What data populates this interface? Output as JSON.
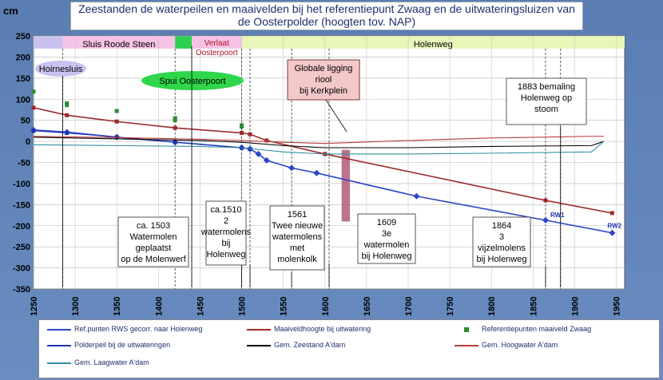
{
  "title": "Zeestanden de waterpeilen en maaivelden bij het referentiepunt Zwaag en de  uitwateringsluizen van de Oosterpolder (hoogten tov. NAP)",
  "chart_data": {
    "type": "line",
    "ylabel": "cm",
    "xlim": [
      1250,
      1960
    ],
    "ylim": [
      -350,
      250
    ],
    "y_ticks": [
      250,
      200,
      150,
      100,
      50,
      0,
      -50,
      -100,
      -150,
      -200,
      -250,
      -300,
      -350
    ],
    "x_ticks": [
      1250,
      1300,
      1350,
      1400,
      1450,
      1500,
      1550,
      1600,
      1650,
      1700,
      1750,
      1800,
      1850,
      1900,
      1950
    ],
    "grid": true,
    "legend_position": "bottom",
    "series": [
      {
        "name": "Ref.punten RWS gecorr. naar Holenweg",
        "color": "#2c46c8",
        "x": [
          1250,
          1290,
          1350,
          1420,
          1500,
          1510,
          1520,
          1530,
          1560,
          1590,
          1710,
          1865,
          1945
        ],
        "y": [
          27,
          22,
          10,
          -2,
          -15,
          -18,
          -30,
          -45,
          -63,
          -75,
          -130,
          -187,
          -217
        ]
      },
      {
        "name": "Maaiveldhoogte bij uitwatering",
        "color": "#9b2b2b",
        "x": [
          1250,
          1290,
          1350,
          1420,
          1500,
          1510,
          1530,
          1600,
          1865,
          1945
        ],
        "y": [
          80,
          62,
          47,
          32,
          20,
          17,
          2,
          -30,
          -140,
          -170
        ]
      },
      {
        "name": "Referentiepunten maaiveld Zwaag",
        "color": "#2e8b2e",
        "x": [
          1250,
          1290,
          1290,
          1350,
          1420,
          1420,
          1500,
          1500
        ],
        "y": [
          118,
          90,
          86,
          72,
          55,
          50,
          38,
          35
        ]
      },
      {
        "name": "Polderpeil bij de uitwateringen",
        "color": "#1f34b0",
        "x": [
          1250,
          1290,
          1350,
          1420,
          1500,
          1510
        ],
        "y": [
          25,
          20,
          10,
          -2,
          -15,
          -18
        ]
      },
      {
        "name": "Gem. Zeestand A'dam",
        "color": "#000000",
        "x": [
          1250,
          1350,
          1450,
          1500,
          1550,
          1600,
          1700,
          1800,
          1920,
          1935
        ],
        "y": [
          10,
          6,
          2,
          -2,
          -10,
          -15,
          -15,
          -12,
          -10,
          0
        ]
      },
      {
        "name": "Gem. Hoogwater A'dam",
        "color": "#b83b3b",
        "x": [
          1250,
          1350,
          1450,
          1500,
          1550,
          1600,
          1700,
          1800,
          1920,
          1935
        ],
        "y": [
          12,
          9,
          5,
          2,
          -2,
          -5,
          2,
          8,
          12,
          12
        ]
      },
      {
        "name": "Gem. Laagwater A'dam",
        "color": "#2f8fa6",
        "x": [
          1250,
          1350,
          1450,
          1500,
          1550,
          1600,
          1700,
          1800,
          1920,
          1935
        ],
        "y": [
          -8,
          -10,
          -12,
          -15,
          -25,
          -30,
          -30,
          -28,
          -25,
          0
        ]
      }
    ],
    "periods": [
      {
        "label": "",
        "x0": 1250,
        "x1": 1285,
        "color": "#c8c0ee"
      },
      {
        "label": "Sluis Roode Steen",
        "x0": 1285,
        "x1": 1420,
        "color": "#f6c2e6"
      },
      {
        "label": "",
        "x0": 1420,
        "x1": 1440,
        "color": "#2fcf4f"
      },
      {
        "label": "Verlaat Oosterpoort",
        "x0": 1440,
        "x1": 1500,
        "color": "#f6c2e6"
      },
      {
        "label": "Holenweg",
        "x0": 1500,
        "x1": 1960,
        "color": "#e8f7b8"
      }
    ],
    "annotations": [
      {
        "label": "Hoirnesluis"
      },
      {
        "label": "Spui Oosterpoort"
      },
      {
        "label": "Globale ligging riool bij Kerkplein"
      },
      {
        "label": "1883  bemaling Holenweg op stoom"
      },
      {
        "label": "ca. 1503 Watermolen geplaatst op de Molenwerf"
      },
      {
        "label": "ca.1510 2 watermolens bij Holenweg"
      },
      {
        "label": "1561 Twee nieuwe watermolens met molenkolk"
      },
      {
        "label": "1609 3e watermolen bij Holenweg"
      },
      {
        "label": "1864 3 vijzelmolens bij  Holenweg"
      }
    ],
    "point_labels": [
      "RW1",
      "RW2"
    ]
  }
}
